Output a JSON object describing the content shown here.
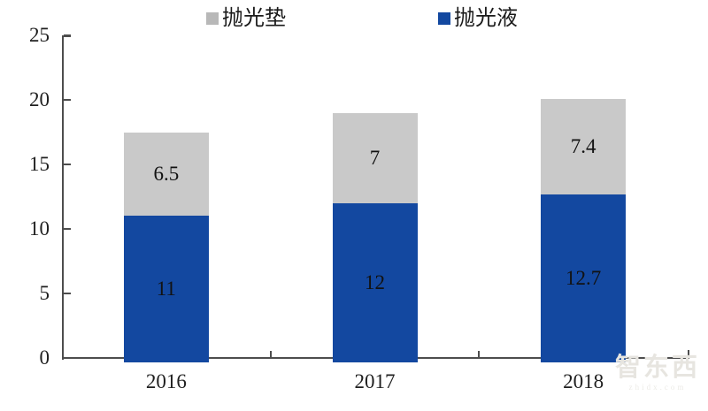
{
  "chart_data": {
    "type": "bar",
    "stacked": true,
    "title": "",
    "categories": [
      "2016",
      "2017",
      "2018"
    ],
    "series": [
      {
        "name": "抛光液",
        "color": "#1348A0",
        "values": [
          11,
          12,
          12.7
        ]
      },
      {
        "name": "抛光垫",
        "color": "#C9C9C9",
        "values": [
          6.5,
          7,
          7.4
        ]
      }
    ],
    "data_labels": {
      "抛光液": [
        "11",
        "12",
        "12.7"
      ],
      "抛光垫": [
        "6.5",
        "7",
        "7.4"
      ]
    },
    "legend": {
      "position": "top",
      "items": [
        {
          "label": "抛光垫",
          "color": "#B8B8B8"
        },
        {
          "label": "抛光液",
          "color": "#1348A0"
        }
      ]
    },
    "axes": {
      "ylim": [
        0,
        25
      ],
      "yticks": [
        0,
        5,
        10,
        15,
        20,
        25
      ],
      "xlabel": "",
      "ylabel": "",
      "grid": false
    },
    "colors": {
      "axis": "#4D4D4D",
      "text": "#1F1F1F"
    }
  },
  "watermark": {
    "text": "智东西",
    "subtext": "zhidx.com"
  }
}
